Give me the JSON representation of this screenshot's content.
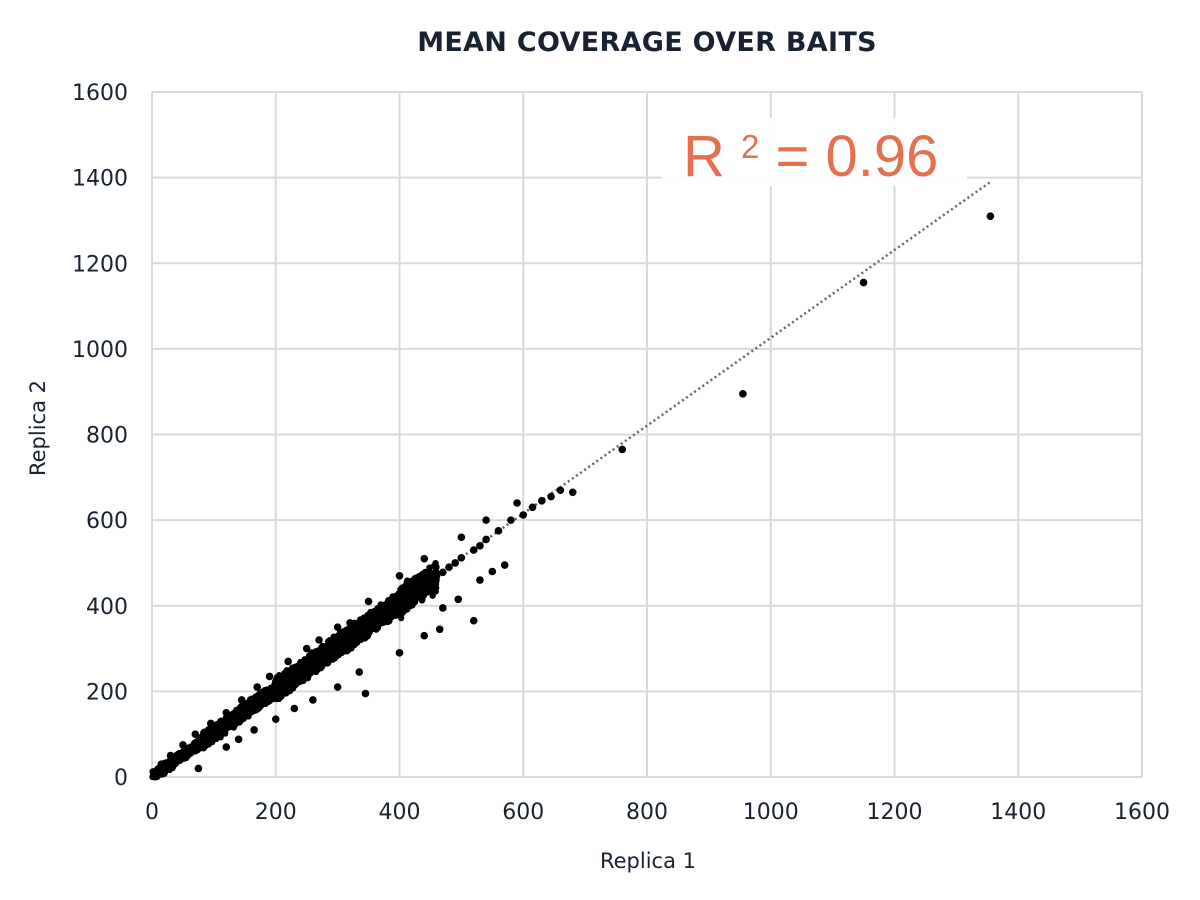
{
  "chart_data": {
    "type": "scatter",
    "title": "MEAN COVERAGE OVER BAITS",
    "xlabel": "Replica 1",
    "ylabel": "Replica 2",
    "xlim": [
      0,
      1600
    ],
    "ylim": [
      0,
      1600
    ],
    "xticks": [
      0,
      200,
      400,
      600,
      800,
      1000,
      1200,
      1400,
      1600
    ],
    "yticks": [
      0,
      200,
      400,
      600,
      800,
      1000,
      1200,
      1400,
      1600
    ],
    "grid": true,
    "annotation": {
      "text": "R",
      "superscript": "2",
      "rest": " = 0.96",
      "color": "#e4704f"
    },
    "trendline": {
      "x": [
        0,
        1355
      ],
      "y": [
        0,
        1390
      ],
      "style": "dotted"
    },
    "marker_color": "#000000",
    "points_description": "dense cloud of points along y ≈ x from 0 to ~450, sparse to ~680",
    "series": [
      {
        "points": [
          [
            10,
            12
          ],
          [
            20,
            19
          ],
          [
            30,
            33
          ],
          [
            40,
            38
          ],
          [
            50,
            52
          ],
          [
            60,
            58
          ],
          [
            70,
            73
          ],
          [
            80,
            79
          ],
          [
            90,
            92
          ],
          [
            100,
            98
          ],
          [
            110,
            113
          ],
          [
            120,
            117
          ],
          [
            130,
            134
          ],
          [
            140,
            137
          ],
          [
            150,
            154
          ],
          [
            160,
            158
          ],
          [
            170,
            175
          ],
          [
            180,
            176
          ],
          [
            190,
            196
          ],
          [
            200,
            198
          ],
          [
            210,
            215
          ],
          [
            220,
            219
          ],
          [
            230,
            236
          ],
          [
            240,
            238
          ],
          [
            250,
            256
          ],
          [
            260,
            258
          ],
          [
            270,
            277
          ],
          [
            280,
            279
          ],
          [
            290,
            296
          ],
          [
            300,
            300
          ],
          [
            310,
            318
          ],
          [
            320,
            322
          ],
          [
            330,
            338
          ],
          [
            340,
            343
          ],
          [
            350,
            357
          ],
          [
            360,
            365
          ],
          [
            370,
            378
          ],
          [
            380,
            386
          ],
          [
            390,
            398
          ],
          [
            400,
            408
          ],
          [
            410,
            418
          ],
          [
            420,
            425
          ],
          [
            430,
            438
          ],
          [
            440,
            447
          ],
          [
            450,
            455
          ],
          [
            460,
            470
          ],
          [
            470,
            478
          ],
          [
            480,
            490
          ],
          [
            490,
            500
          ],
          [
            500,
            512
          ],
          [
            520,
            530
          ],
          [
            530,
            540
          ],
          [
            540,
            555
          ],
          [
            560,
            575
          ],
          [
            580,
            600
          ],
          [
            600,
            612
          ],
          [
            615,
            630
          ],
          [
            630,
            645
          ],
          [
            645,
            655
          ],
          [
            660,
            670
          ],
          [
            680,
            665
          ],
          [
            760,
            765
          ],
          [
            955,
            895
          ],
          [
            1150,
            1155
          ],
          [
            1355,
            1310
          ],
          [
            75,
            20
          ],
          [
            120,
            70
          ],
          [
            140,
            88
          ],
          [
            165,
            110
          ],
          [
            200,
            135
          ],
          [
            230,
            160
          ],
          [
            260,
            180
          ],
          [
            300,
            210
          ],
          [
            345,
            195
          ],
          [
            335,
            245
          ],
          [
            400,
            290
          ],
          [
            440,
            330
          ],
          [
            465,
            345
          ],
          [
            520,
            365
          ],
          [
            570,
            495
          ],
          [
            470,
            395
          ],
          [
            495,
            415
          ],
          [
            550,
            480
          ],
          [
            530,
            460
          ],
          [
            590,
            640
          ],
          [
            540,
            600
          ],
          [
            500,
            560
          ],
          [
            440,
            510
          ],
          [
            400,
            470
          ],
          [
            350,
            410
          ],
          [
            320,
            360
          ],
          [
            300,
            350
          ],
          [
            270,
            320
          ],
          [
            250,
            300
          ],
          [
            220,
            270
          ],
          [
            190,
            235
          ],
          [
            170,
            210
          ],
          [
            145,
            180
          ],
          [
            120,
            150
          ],
          [
            95,
            125
          ],
          [
            70,
            100
          ],
          [
            50,
            75
          ],
          [
            30,
            50
          ],
          [
            15,
            30
          ],
          [
            5,
            8
          ]
        ]
      }
    ]
  }
}
